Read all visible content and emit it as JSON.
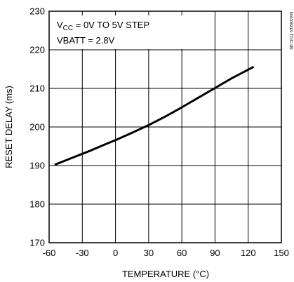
{
  "figure_id": "MAX691A TOC-09",
  "chart_data": {
    "type": "line",
    "title": "",
    "xlabel": "TEMPERATURE (°C)",
    "ylabel": "RESET DELAY (ms)",
    "xlim": [
      -60,
      150
    ],
    "ylim": [
      170,
      230
    ],
    "xticks": [
      -60,
      -30,
      0,
      30,
      60,
      90,
      120,
      150
    ],
    "yticks": [
      170,
      180,
      190,
      200,
      210,
      220,
      230
    ],
    "grid": true,
    "annotations": [
      {
        "main": "V",
        "sub": "CC",
        "rest": " = 0V TO 5V STEP"
      },
      {
        "text": "VBATT = 2.8V"
      }
    ],
    "series": [
      {
        "color": "#000000",
        "x": [
          -55,
          -40,
          -25,
          -10,
          0,
          15,
          30,
          45,
          60,
          75,
          90,
          105,
          125
        ],
        "y": [
          190.2,
          191.9,
          193.6,
          195.4,
          196.6,
          198.5,
          200.5,
          202.7,
          205.1,
          207.6,
          210.1,
          212.6,
          215.6
        ]
      }
    ]
  }
}
